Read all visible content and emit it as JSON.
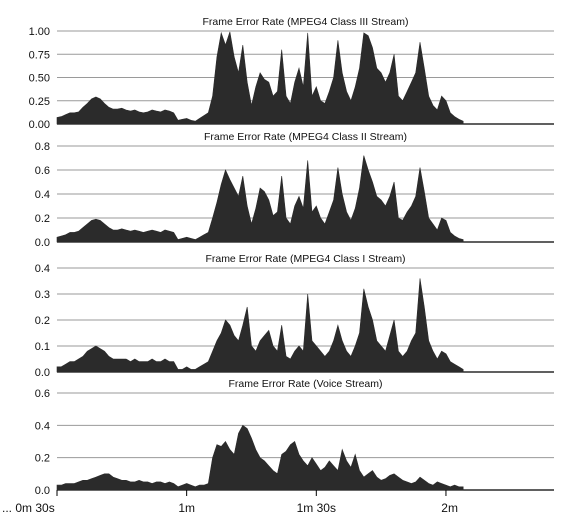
{
  "colors": {
    "bar": "#2b2b2b",
    "grid": "#9a9a9a",
    "axis": "#000000",
    "text": "#111111"
  },
  "x_axis": {
    "range": [
      0,
      115
    ],
    "tick_labels": [
      {
        "label": "... 0m 30s",
        "x": 0
      },
      {
        "label": "1m",
        "x": 30
      },
      {
        "label": "1m 30s",
        "x": 60
      },
      {
        "label": "2m",
        "x": 90
      }
    ]
  },
  "chart_data": [
    {
      "type": "area",
      "title": "Frame Error Rate (MPEG4 Class III Stream)",
      "ylim": [
        0,
        1.0
      ],
      "yticks": [
        0,
        0.25,
        0.5,
        0.75,
        1.0
      ],
      "ytick_labels": [
        "0.00",
        "0.25",
        "0.50",
        "0.75",
        "1.00"
      ],
      "grid": true,
      "x_range": [
        0,
        94
      ],
      "values": [
        0.07,
        0.08,
        0.1,
        0.12,
        0.12,
        0.13,
        0.18,
        0.22,
        0.27,
        0.29,
        0.27,
        0.22,
        0.18,
        0.16,
        0.16,
        0.17,
        0.15,
        0.14,
        0.15,
        0.13,
        0.12,
        0.13,
        0.15,
        0.14,
        0.13,
        0.15,
        0.14,
        0.12,
        0.04,
        0.05,
        0.06,
        0.04,
        0.03,
        0.06,
        0.09,
        0.12,
        0.3,
        0.72,
        0.98,
        0.85,
        0.99,
        0.72,
        0.55,
        0.85,
        0.45,
        0.2,
        0.4,
        0.55,
        0.48,
        0.45,
        0.3,
        0.35,
        0.8,
        0.3,
        0.22,
        0.45,
        0.6,
        0.4,
        0.98,
        0.3,
        0.4,
        0.25,
        0.22,
        0.35,
        0.5,
        0.9,
        0.55,
        0.35,
        0.25,
        0.4,
        0.6,
        0.98,
        0.95,
        0.82,
        0.6,
        0.55,
        0.45,
        0.55,
        0.75,
        0.3,
        0.25,
        0.35,
        0.45,
        0.55,
        0.88,
        0.6,
        0.3,
        0.2,
        0.15,
        0.3,
        0.25,
        0.12,
        0.08,
        0.05,
        0.03
      ]
    },
    {
      "type": "area",
      "title": "Frame Error Rate (MPEG4 Class II Stream)",
      "ylim": [
        0,
        0.8
      ],
      "yticks": [
        0,
        0.2,
        0.4,
        0.6,
        0.8
      ],
      "ytick_labels": [
        "0.0",
        "0.2",
        "0.4",
        "0.6",
        "0.8"
      ],
      "grid": true,
      "x_range": [
        0,
        94
      ],
      "values": [
        0.04,
        0.05,
        0.06,
        0.08,
        0.08,
        0.09,
        0.12,
        0.15,
        0.18,
        0.19,
        0.18,
        0.15,
        0.12,
        0.1,
        0.1,
        0.11,
        0.1,
        0.09,
        0.1,
        0.09,
        0.08,
        0.09,
        0.1,
        0.09,
        0.08,
        0.1,
        0.09,
        0.08,
        0.02,
        0.03,
        0.04,
        0.03,
        0.02,
        0.04,
        0.06,
        0.08,
        0.2,
        0.33,
        0.48,
        0.6,
        0.52,
        0.45,
        0.38,
        0.55,
        0.3,
        0.15,
        0.28,
        0.45,
        0.42,
        0.35,
        0.22,
        0.25,
        0.55,
        0.2,
        0.15,
        0.3,
        0.38,
        0.28,
        0.68,
        0.25,
        0.3,
        0.2,
        0.15,
        0.25,
        0.35,
        0.62,
        0.4,
        0.25,
        0.18,
        0.28,
        0.45,
        0.72,
        0.6,
        0.5,
        0.38,
        0.35,
        0.3,
        0.38,
        0.5,
        0.2,
        0.18,
        0.25,
        0.3,
        0.38,
        0.62,
        0.42,
        0.2,
        0.15,
        0.1,
        0.2,
        0.18,
        0.08,
        0.05,
        0.03,
        0.02
      ]
    },
    {
      "type": "area",
      "title": "Frame Error Rate (MPEG4 Class I Stream)",
      "ylim": [
        0,
        0.4
      ],
      "yticks": [
        0,
        0.1,
        0.2,
        0.3,
        0.4
      ],
      "ytick_labels": [
        "0.0",
        "0.1",
        "0.2",
        "0.3",
        "0.4"
      ],
      "grid": true,
      "x_range": [
        0,
        94
      ],
      "values": [
        0.02,
        0.02,
        0.03,
        0.04,
        0.04,
        0.05,
        0.06,
        0.08,
        0.09,
        0.1,
        0.09,
        0.08,
        0.06,
        0.05,
        0.05,
        0.05,
        0.05,
        0.04,
        0.05,
        0.04,
        0.04,
        0.04,
        0.05,
        0.04,
        0.04,
        0.05,
        0.04,
        0.04,
        0.01,
        0.01,
        0.02,
        0.01,
        0.01,
        0.02,
        0.03,
        0.04,
        0.08,
        0.12,
        0.15,
        0.2,
        0.18,
        0.14,
        0.12,
        0.18,
        0.25,
        0.1,
        0.08,
        0.12,
        0.14,
        0.16,
        0.1,
        0.08,
        0.18,
        0.06,
        0.05,
        0.08,
        0.1,
        0.08,
        0.3,
        0.12,
        0.1,
        0.08,
        0.06,
        0.08,
        0.12,
        0.18,
        0.12,
        0.08,
        0.06,
        0.1,
        0.15,
        0.32,
        0.25,
        0.2,
        0.12,
        0.1,
        0.08,
        0.14,
        0.2,
        0.08,
        0.06,
        0.08,
        0.12,
        0.15,
        0.36,
        0.25,
        0.12,
        0.08,
        0.05,
        0.08,
        0.07,
        0.04,
        0.03,
        0.02,
        0.01
      ]
    },
    {
      "type": "area",
      "title": "Frame Error Rate (Voice Stream)",
      "ylim": [
        0,
        0.6
      ],
      "yticks": [
        0,
        0.2,
        0.4,
        0.6
      ],
      "ytick_labels": [
        "0.0",
        "0.2",
        "0.4",
        "0.6"
      ],
      "grid": true,
      "x_range": [
        0,
        94
      ],
      "values": [
        0.03,
        0.03,
        0.04,
        0.04,
        0.04,
        0.05,
        0.06,
        0.06,
        0.07,
        0.08,
        0.09,
        0.1,
        0.1,
        0.08,
        0.07,
        0.06,
        0.06,
        0.05,
        0.05,
        0.06,
        0.05,
        0.05,
        0.04,
        0.05,
        0.05,
        0.04,
        0.05,
        0.04,
        0.02,
        0.03,
        0.04,
        0.03,
        0.02,
        0.03,
        0.03,
        0.04,
        0.2,
        0.28,
        0.27,
        0.3,
        0.25,
        0.22,
        0.35,
        0.4,
        0.38,
        0.32,
        0.25,
        0.2,
        0.18,
        0.15,
        0.12,
        0.1,
        0.22,
        0.24,
        0.28,
        0.3,
        0.22,
        0.18,
        0.15,
        0.2,
        0.16,
        0.12,
        0.14,
        0.18,
        0.15,
        0.12,
        0.25,
        0.18,
        0.14,
        0.22,
        0.12,
        0.08,
        0.1,
        0.12,
        0.08,
        0.06,
        0.07,
        0.09,
        0.1,
        0.08,
        0.06,
        0.05,
        0.04,
        0.05,
        0.08,
        0.06,
        0.04,
        0.03,
        0.05,
        0.04,
        0.03,
        0.02,
        0.03,
        0.02,
        0.02
      ]
    }
  ]
}
